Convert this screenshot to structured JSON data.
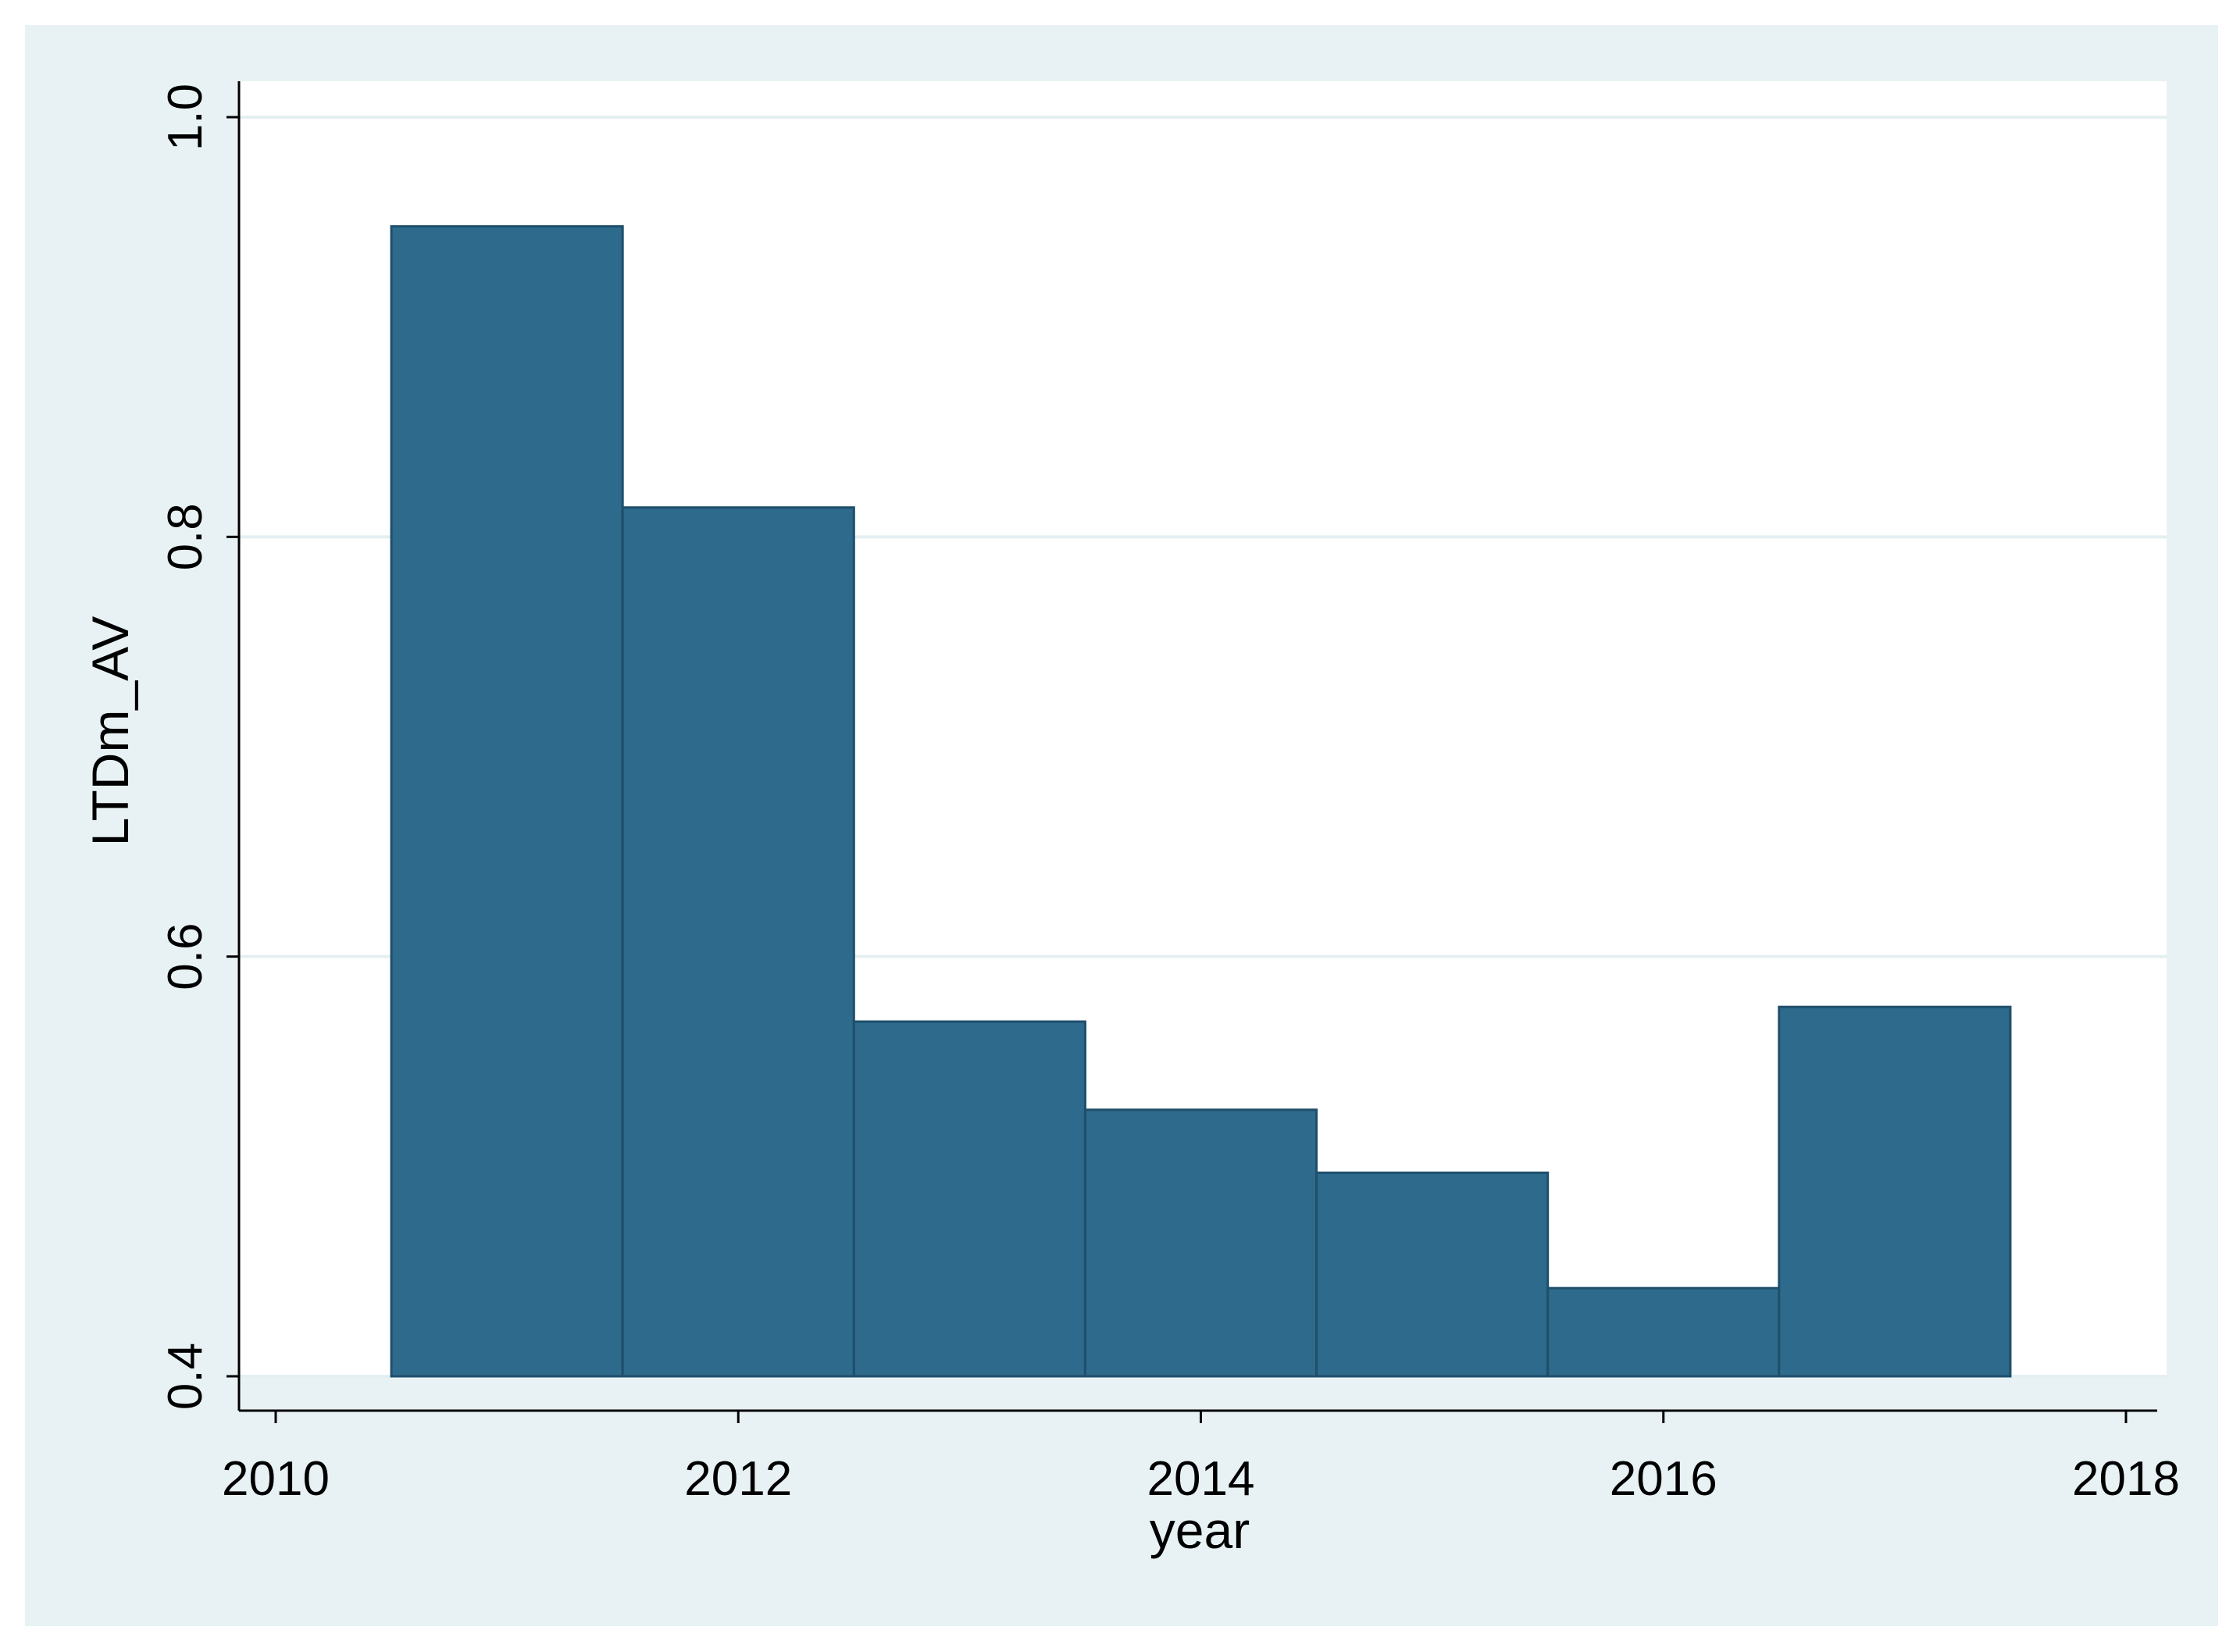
{
  "chart_data": {
    "type": "bar",
    "categories": [
      "2011",
      "2012",
      "2013",
      "2014",
      "2015",
      "2016",
      "2017"
    ],
    "series": [
      {
        "values": [
          0.948,
          0.814,
          0.569,
          0.527,
          0.497,
          0.442,
          0.576
        ]
      }
    ],
    "xlabel": "year",
    "ylabel": "LTDm_AV",
    "xlim": [
      2010,
      2018
    ],
    "ylim": [
      0.4,
      1.0
    ],
    "xticks": [
      "2010",
      "2012",
      "2014",
      "2016",
      "2018"
    ],
    "yticks": [
      "0.4",
      "0.6",
      "0.8",
      "1.0"
    ],
    "grid": true,
    "legend": "none"
  },
  "colors": {
    "bar_fill": "#2e6a8c",
    "bar_stroke": "#1e4f6b",
    "outer_background": "#e8f2f4",
    "plot_background": "#ffffff",
    "gridline": "#e4eff2",
    "axis": "#000000"
  }
}
